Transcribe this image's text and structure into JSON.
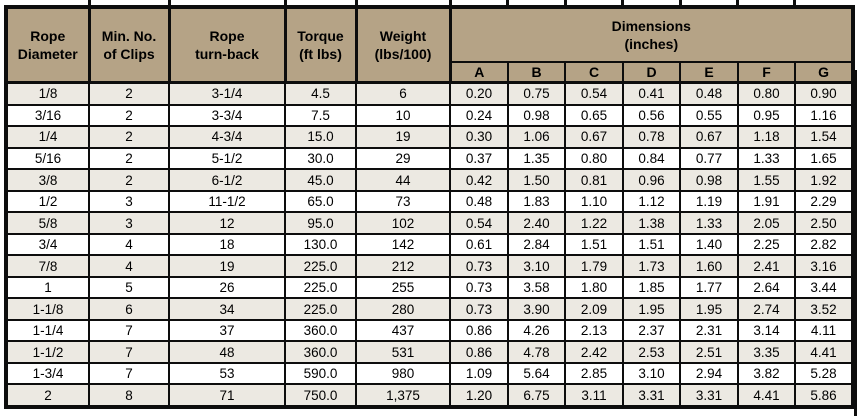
{
  "colors": {
    "header_bg": "#b5a386",
    "row_stripe": "#ece9e2",
    "row_white": "#ffffff",
    "grid": "#0d0d0d",
    "text": "#000000"
  },
  "table": {
    "columns": [
      [
        "Rope",
        "Diameter"
      ],
      [
        "Min. No.",
        "of Clips"
      ],
      [
        "Rope",
        "turn-back"
      ],
      [
        "Torque",
        "(ft lbs)"
      ],
      [
        "Weight",
        "(lbs/100)"
      ]
    ],
    "dimensions_group": [
      "Dimensions",
      "(inches)"
    ],
    "dimension_columns": [
      "A",
      "B",
      "C",
      "D",
      "E",
      "F",
      "G"
    ],
    "rows": [
      [
        "1/8",
        "2",
        "3-1/4",
        "4.5",
        "6",
        "0.20",
        "0.75",
        "0.54",
        "0.41",
        "0.48",
        "0.80",
        "0.90"
      ],
      [
        "3/16",
        "2",
        "3-3/4",
        "7.5",
        "10",
        "0.24",
        "0.98",
        "0.65",
        "0.56",
        "0.55",
        "0.95",
        "1.16"
      ],
      [
        "1/4",
        "2",
        "4-3/4",
        "15.0",
        "19",
        "0.30",
        "1.06",
        "0.67",
        "0.78",
        "0.67",
        "1.18",
        "1.54"
      ],
      [
        "5/16",
        "2",
        "5-1/2",
        "30.0",
        "29",
        "0.37",
        "1.35",
        "0.80",
        "0.84",
        "0.77",
        "1.33",
        "1.65"
      ],
      [
        "3/8",
        "2",
        "6-1/2",
        "45.0",
        "44",
        "0.42",
        "1.50",
        "0.81",
        "0.96",
        "0.98",
        "1.55",
        "1.92"
      ],
      [
        "1/2",
        "3",
        "11-1/2",
        "65.0",
        "73",
        "0.48",
        "1.83",
        "1.10",
        "1.12",
        "1.19",
        "1.91",
        "2.29"
      ],
      [
        "5/8",
        "3",
        "12",
        "95.0",
        "102",
        "0.54",
        "2.40",
        "1.22",
        "1.38",
        "1.33",
        "2.05",
        "2.50"
      ],
      [
        "3/4",
        "4",
        "18",
        "130.0",
        "142",
        "0.61",
        "2.84",
        "1.51",
        "1.51",
        "1.40",
        "2.25",
        "2.82"
      ],
      [
        "7/8",
        "4",
        "19",
        "225.0",
        "212",
        "0.73",
        "3.10",
        "1.79",
        "1.73",
        "1.60",
        "2.41",
        "3.16"
      ],
      [
        "1",
        "5",
        "26",
        "225.0",
        "255",
        "0.73",
        "3.58",
        "1.80",
        "1.85",
        "1.77",
        "2.64",
        "3.44"
      ],
      [
        "1-1/8",
        "6",
        "34",
        "225.0",
        "280",
        "0.73",
        "3.90",
        "2.09",
        "1.95",
        "1.95",
        "2.74",
        "3.52"
      ],
      [
        "1-1/4",
        "7",
        "37",
        "360.0",
        "437",
        "0.86",
        "4.26",
        "2.13",
        "2.37",
        "2.31",
        "3.14",
        "4.11"
      ],
      [
        "1-1/2",
        "7",
        "48",
        "360.0",
        "531",
        "0.86",
        "4.78",
        "2.42",
        "2.53",
        "2.51",
        "3.35",
        "4.41"
      ],
      [
        "1-3/4",
        "7",
        "53",
        "590.0",
        "980",
        "1.09",
        "5.64",
        "2.85",
        "3.10",
        "2.94",
        "3.82",
        "5.28"
      ],
      [
        "2",
        "8",
        "71",
        "750.0",
        "1,375",
        "1.20",
        "6.75",
        "3.11",
        "3.31",
        "3.31",
        "4.41",
        "5.86"
      ]
    ]
  }
}
